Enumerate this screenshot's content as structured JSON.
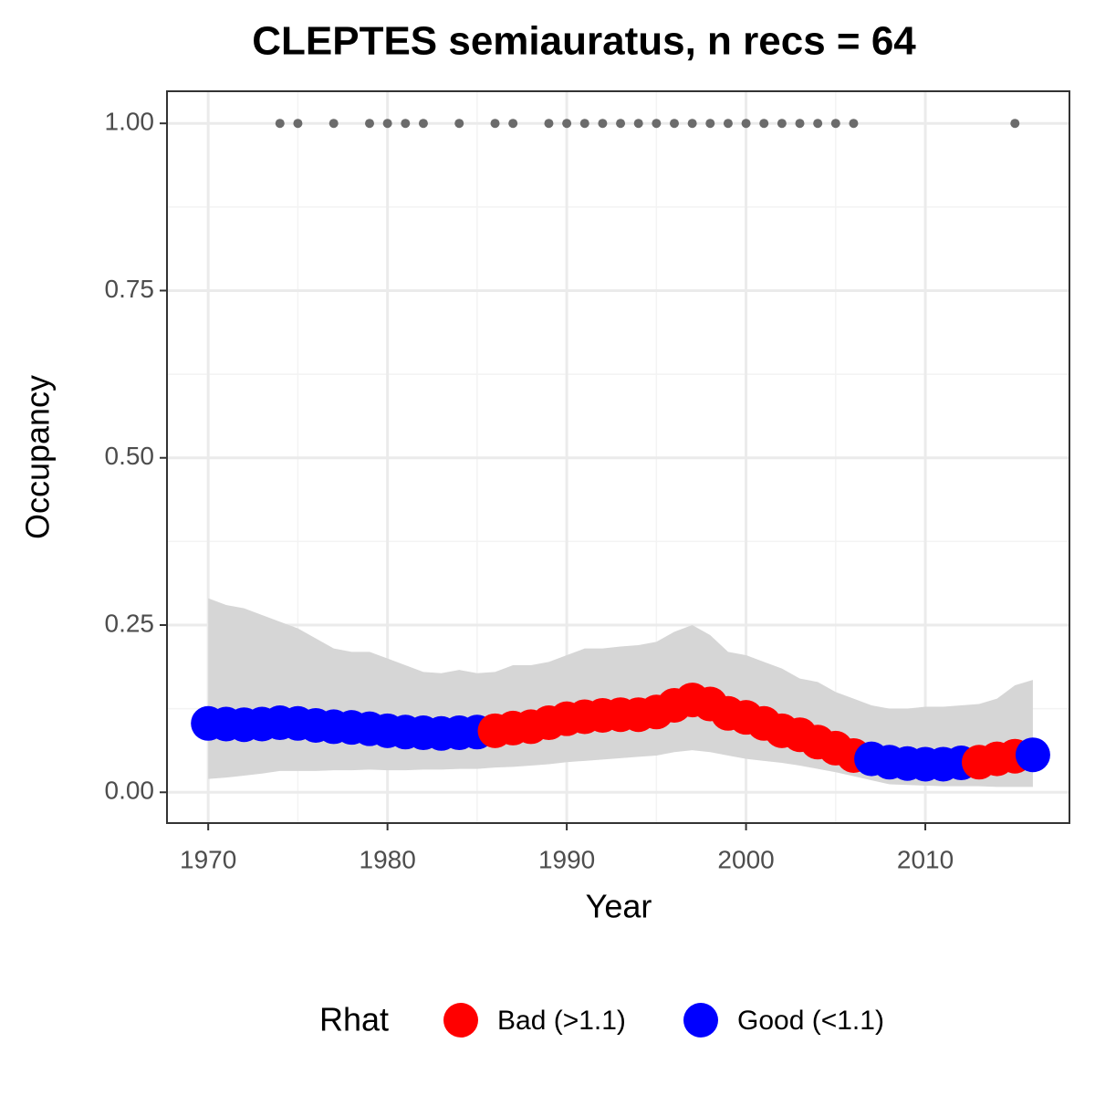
{
  "chart_data": {
    "type": "occupancy",
    "title": "CLEPTES semiauratus, n recs = 64",
    "xlabel": "Year",
    "ylabel": "Occupancy",
    "xlim": [
      1967.7,
      2018.04
    ],
    "ylim": [
      -0.046,
      1.048
    ],
    "xticks": [
      1970,
      1980,
      1990,
      2000,
      2010
    ],
    "yticks": [
      {
        "value": 0,
        "label": "0.00"
      },
      {
        "value": 0.25,
        "label": "0.25"
      },
      {
        "value": 0.5,
        "label": "0.50"
      },
      {
        "value": 0.75,
        "label": "0.75"
      },
      {
        "value": 1,
        "label": "1.00"
      }
    ],
    "grid": true,
    "x": [
      1970,
      1971,
      1972,
      1973,
      1974,
      1975,
      1976,
      1977,
      1978,
      1979,
      1980,
      1981,
      1982,
      1983,
      1984,
      1985,
      1986,
      1987,
      1988,
      1989,
      1990,
      1991,
      1992,
      1993,
      1994,
      1995,
      1996,
      1997,
      1998,
      1999,
      2000,
      2001,
      2002,
      2003,
      2004,
      2005,
      2006,
      2007,
      2008,
      2009,
      2010,
      2011,
      2012,
      2013,
      2014,
      2015,
      2016
    ],
    "mean": [
      0.103,
      0.102,
      0.101,
      0.102,
      0.104,
      0.103,
      0.1,
      0.098,
      0.097,
      0.095,
      0.092,
      0.09,
      0.089,
      0.088,
      0.089,
      0.09,
      0.092,
      0.096,
      0.098,
      0.104,
      0.11,
      0.113,
      0.115,
      0.116,
      0.116,
      0.12,
      0.13,
      0.138,
      0.132,
      0.118,
      0.112,
      0.103,
      0.092,
      0.086,
      0.075,
      0.066,
      0.055,
      0.05,
      0.045,
      0.043,
      0.042,
      0.042,
      0.044,
      0.045,
      0.05,
      0.054,
      0.056
    ],
    "upper": [
      0.29,
      0.28,
      0.275,
      0.265,
      0.255,
      0.245,
      0.23,
      0.215,
      0.21,
      0.21,
      0.2,
      0.19,
      0.18,
      0.178,
      0.183,
      0.178,
      0.18,
      0.19,
      0.19,
      0.195,
      0.205,
      0.215,
      0.215,
      0.218,
      0.22,
      0.225,
      0.24,
      0.25,
      0.235,
      0.21,
      0.205,
      0.195,
      0.185,
      0.17,
      0.165,
      0.15,
      0.14,
      0.13,
      0.125,
      0.125,
      0.128,
      0.128,
      0.13,
      0.132,
      0.14,
      0.16,
      0.168
    ],
    "lower": [
      0.02,
      0.022,
      0.025,
      0.028,
      0.032,
      0.032,
      0.032,
      0.033,
      0.033,
      0.034,
      0.033,
      0.033,
      0.034,
      0.034,
      0.035,
      0.035,
      0.037,
      0.038,
      0.04,
      0.042,
      0.045,
      0.047,
      0.049,
      0.051,
      0.053,
      0.055,
      0.06,
      0.063,
      0.06,
      0.055,
      0.05,
      0.047,
      0.044,
      0.04,
      0.035,
      0.03,
      0.024,
      0.018,
      0.012,
      0.011,
      0.01,
      0.009,
      0.009,
      0.009,
      0.008,
      0.008,
      0.008
    ],
    "band_color": "#d6d6d6",
    "rhat_group": [
      1,
      1,
      1,
      1,
      1,
      1,
      1,
      1,
      1,
      1,
      1,
      1,
      1,
      1,
      1,
      1,
      0,
      0,
      0,
      0,
      0,
      0,
      0,
      0,
      0,
      0,
      0,
      0,
      0,
      0,
      0,
      0,
      0,
      0,
      0,
      0,
      0,
      1,
      1,
      1,
      1,
      1,
      1,
      0,
      0,
      0,
      1
    ],
    "legend": {
      "title": "Rhat",
      "entries": [
        {
          "name": "Bad (>1.1)",
          "color": "#ff0000"
        },
        {
          "name": "Good (<1.1)",
          "color": "#0000ff"
        }
      ]
    },
    "records": {
      "color": "#6b6b6b",
      "x": [
        1974,
        1975,
        1977,
        1979,
        1980,
        1981,
        1982,
        1984,
        1986,
        1987,
        1989,
        1990,
        1991,
        1992,
        1993,
        1994,
        1995,
        1996,
        1997,
        1998,
        1999,
        2000,
        2001,
        2002,
        2003,
        2004,
        2005,
        2006,
        2015
      ],
      "values": [
        1,
        1,
        1,
        1,
        1,
        1,
        1,
        1,
        1,
        1,
        1,
        1,
        1,
        1,
        1,
        1,
        1,
        1,
        1,
        1,
        1,
        1,
        1,
        1,
        1,
        1,
        1,
        1,
        1
      ]
    }
  }
}
